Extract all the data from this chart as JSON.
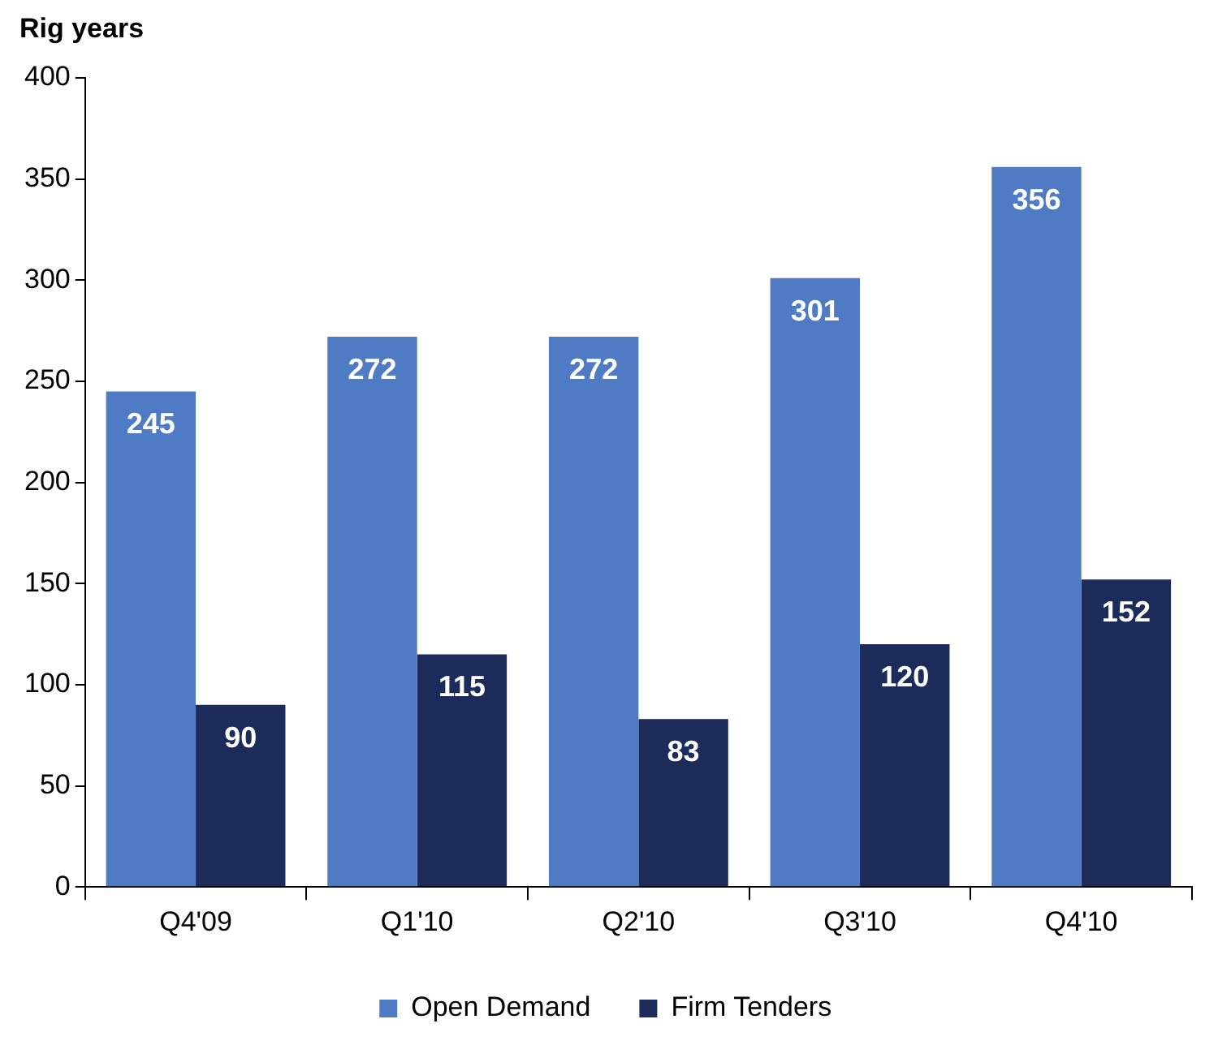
{
  "chart_data": {
    "type": "bar",
    "ylabel": "Rig years",
    "categories": [
      "Q4'09",
      "Q1'10",
      "Q2'10",
      "Q3'10",
      "Q4'10"
    ],
    "series": [
      {
        "name": "Open Demand",
        "color": "#4f7bc4",
        "values": [
          245,
          272,
          272,
          301,
          356
        ]
      },
      {
        "name": "Firm Tenders",
        "color": "#1c2b5a",
        "values": [
          90,
          115,
          83,
          120,
          152
        ]
      }
    ],
    "ylim": [
      0,
      400
    ],
    "yticks": [
      0,
      50,
      100,
      150,
      200,
      250,
      300,
      350,
      400
    ],
    "grid": false,
    "legend": "bottom",
    "data_labels": true
  }
}
